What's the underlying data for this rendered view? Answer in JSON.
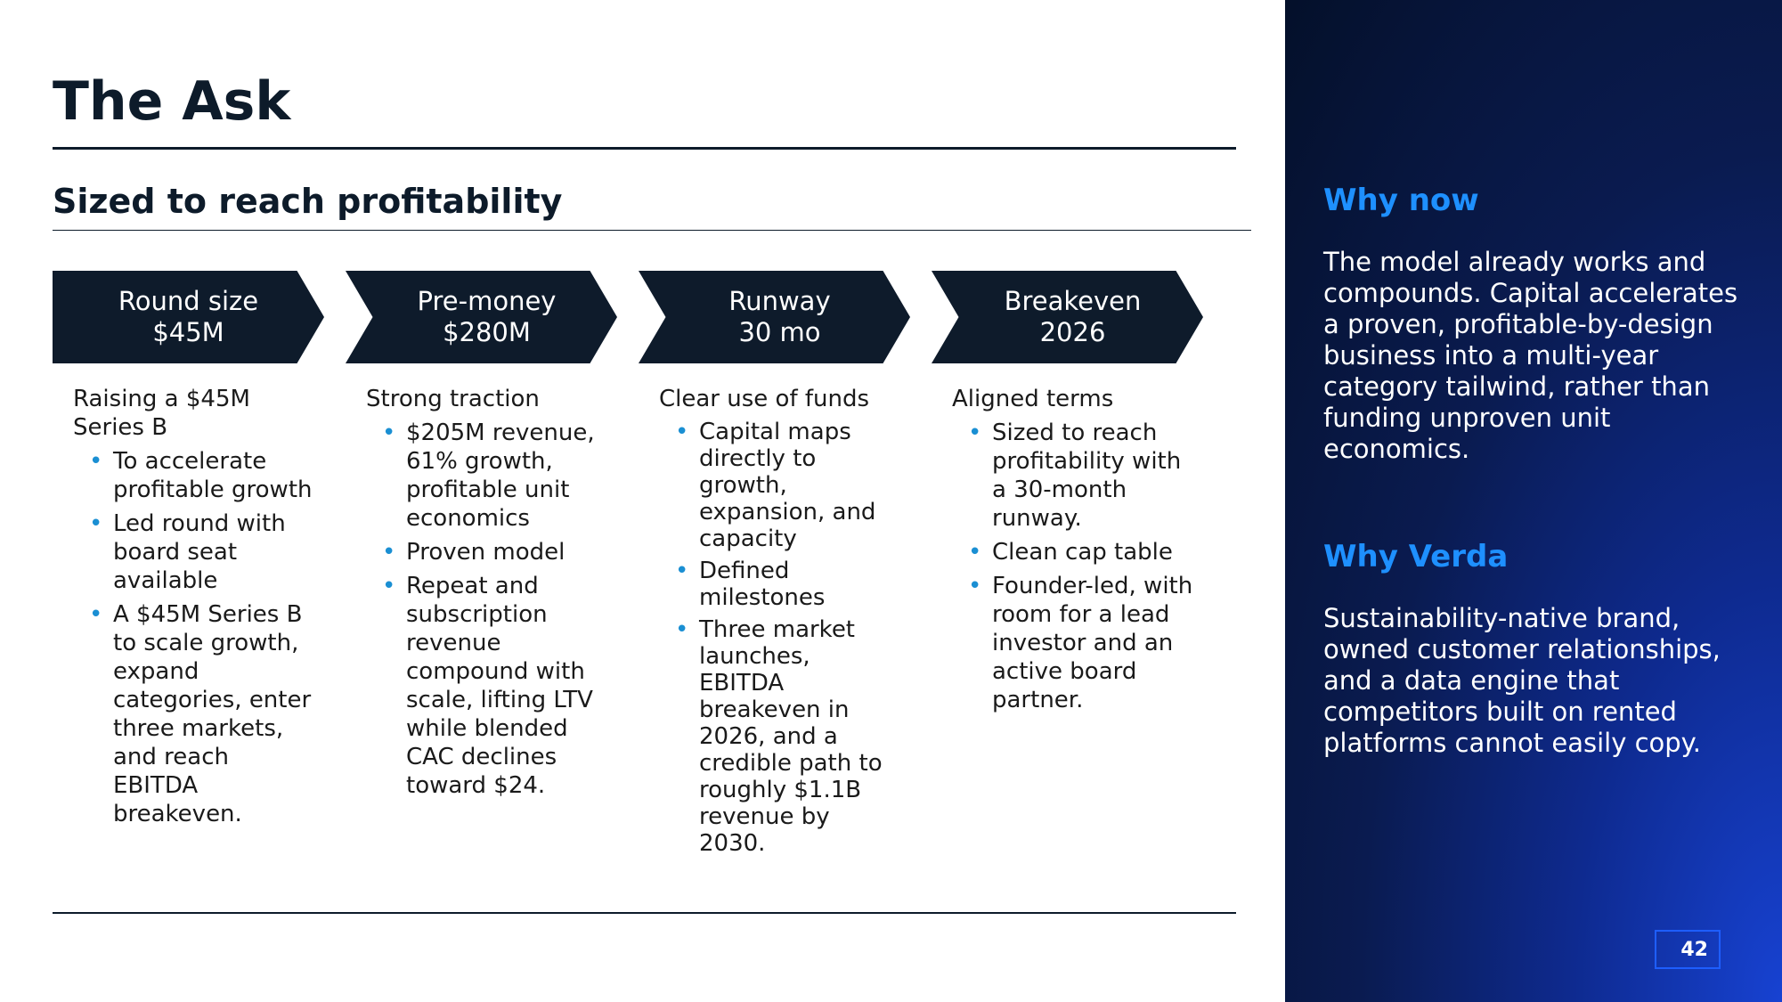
{
  "slide": {
    "title": "The Ask",
    "subtitle": "Sized to reach profitability",
    "page_number": "42"
  },
  "chevrons": [
    {
      "label": "Round size",
      "value": "$45M"
    },
    {
      "label": "Pre-money",
      "value": "$280M"
    },
    {
      "label": "Runway",
      "value": "30 mo"
    },
    {
      "label": "Breakeven",
      "value": "2026"
    }
  ],
  "columns": [
    {
      "heading": "Raising a $45M Series B",
      "bullets": [
        "To accelerate profitable growth",
        "Led round with board seat available",
        "A $45M Series B to scale growth, expand categories, enter three markets, and reach EBITDA breakeven."
      ]
    },
    {
      "heading": "Strong traction",
      "bullets": [
        "$205M revenue, 61% growth, profitable unit economics",
        "Proven model",
        "Repeat and subscription revenue compound with scale, lifting LTV while blended CAC declines toward $24."
      ]
    },
    {
      "heading": "Clear use of funds",
      "bullets": [
        "Capital maps directly to growth, expansion, and capacity",
        "Defined milestones",
        "Three market launches, EBITDA breakeven in 2026, and a credible path to roughly $1.1B revenue by 2030."
      ]
    },
    {
      "heading": "Aligned terms",
      "bullets": [
        "Sized to reach profitability with a 30-month runway.",
        "Clean cap table",
        "Founder-led, with room for a lead investor and an active board partner."
      ]
    }
  ],
  "side_panel": {
    "why_now_heading": "Why now",
    "why_now_text": "The model already works and compounds. Capital accelerates a proven, profitable-by-design business into a multi-year category tailwind, rather than funding unproven unit economics.",
    "why_verda_heading": "Why Verda",
    "why_verda_text": "Sustainability-native brand, owned customer relationships, and a data engine that competitors built on rented platforms cannot easily copy."
  },
  "colors": {
    "navy": "#0d1b2a",
    "accent_blue": "#1e90ff",
    "bullet_blue": "#1a8fd3"
  }
}
